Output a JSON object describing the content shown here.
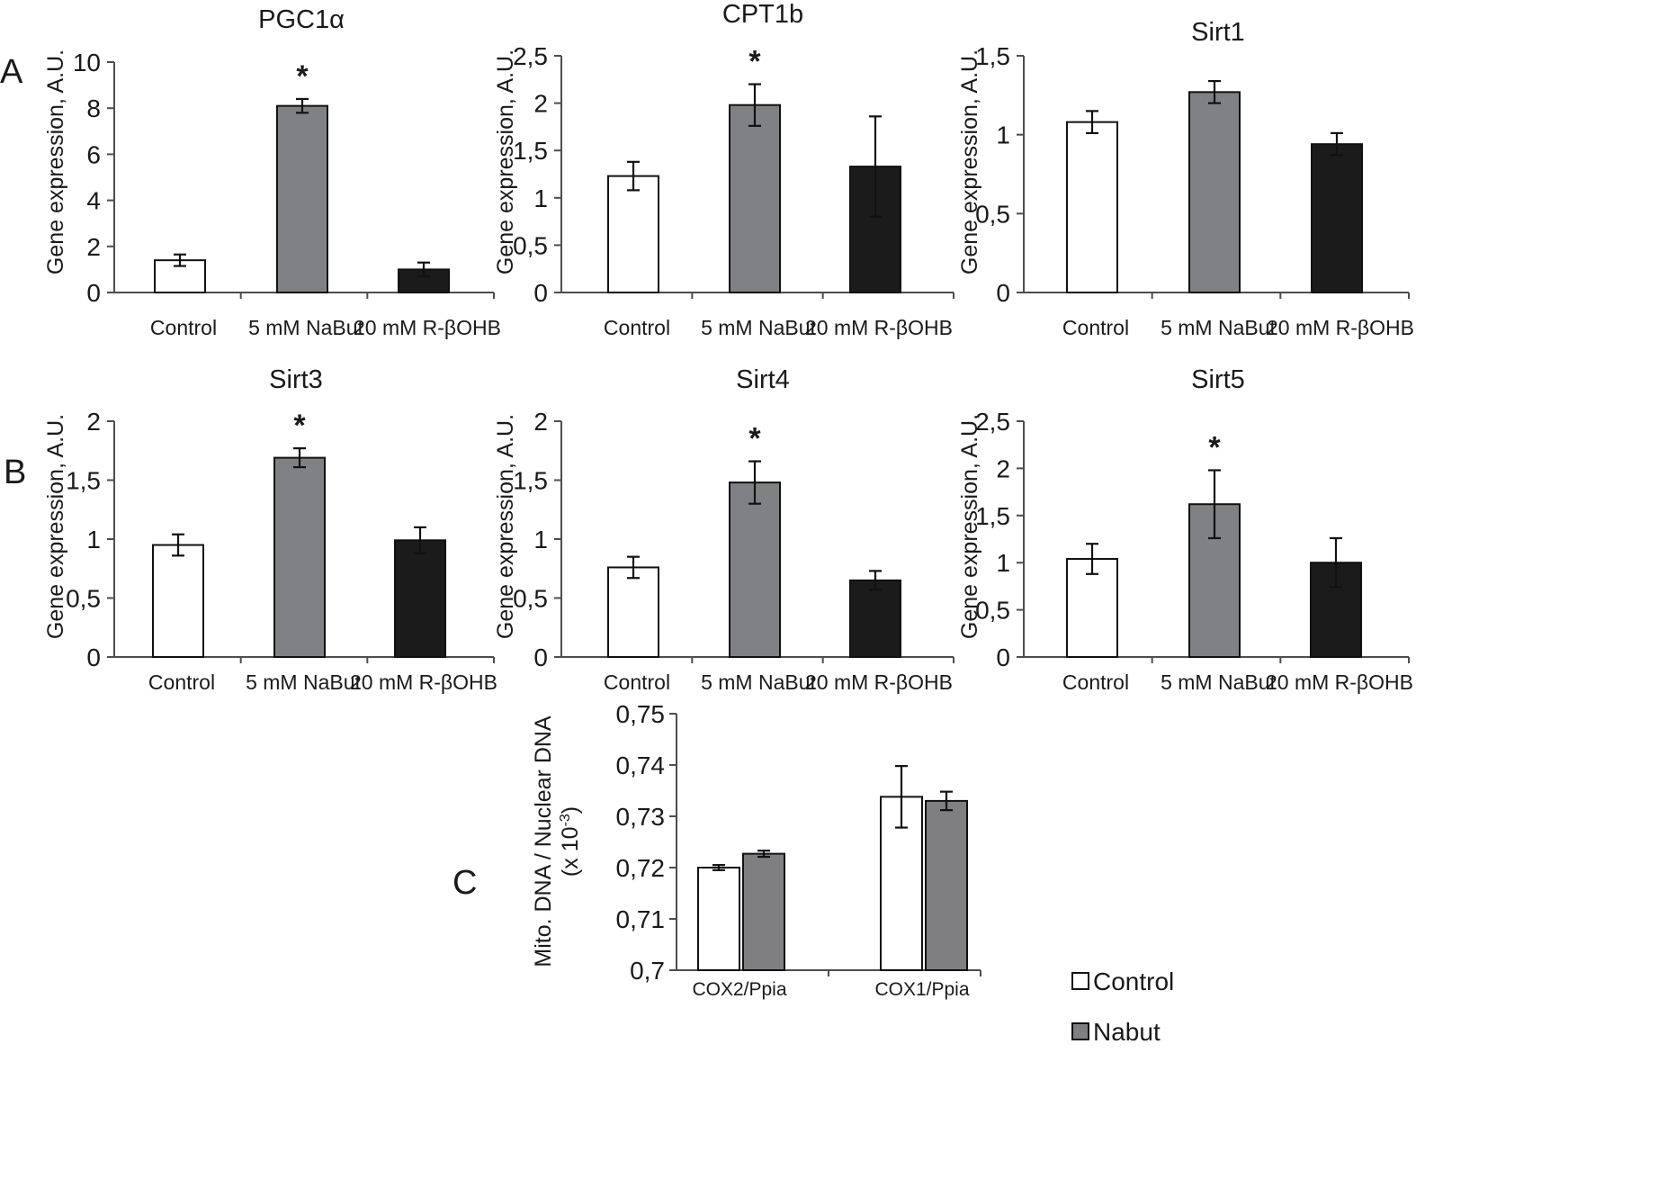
{
  "panel_labels": {
    "a": "A",
    "b": "B",
    "c": "C"
  },
  "colors": {
    "control": "#ffffff",
    "nabut": "#808184",
    "bohb": "#1b1b1b",
    "nabut_c": "#7f7f82"
  },
  "chart_data": [
    {
      "type": "bar",
      "title": "PGC1α",
      "ylabel": "Gene expression, A.U.",
      "categories": [
        "Control",
        "5 mM NaBut",
        "20 mM R-βOHB"
      ],
      "values": [
        1.4,
        8.1,
        1.0
      ],
      "errors": [
        0.25,
        0.3,
        0.3
      ],
      "significant": [
        false,
        true,
        false
      ],
      "sig_marker": "*",
      "ylim": [
        0,
        10
      ],
      "yticks": [
        "0",
        "2",
        "4",
        "6",
        "8",
        "10"
      ]
    },
    {
      "type": "bar",
      "title": "CPT1b",
      "ylabel": "Gene expression, A.U.",
      "categories": [
        "Control",
        "5 mM NaBut",
        "20 mM R-βOHB"
      ],
      "values": [
        1.23,
        1.98,
        1.33
      ],
      "errors": [
        0.15,
        0.22,
        0.53
      ],
      "significant": [
        false,
        true,
        false
      ],
      "sig_marker": "*",
      "ylim": [
        0,
        2.5
      ],
      "yticks": [
        "0",
        "0,5",
        "1",
        "1,5",
        "2",
        "2,5"
      ]
    },
    {
      "type": "bar",
      "title": "Sirt1",
      "ylabel": "Gene expression, A.U.",
      "categories": [
        "Control",
        "5 mM NaBut",
        "20 mM R-βOHB"
      ],
      "values": [
        1.08,
        1.27,
        0.94
      ],
      "errors": [
        0.07,
        0.07,
        0.07
      ],
      "significant": [
        false,
        false,
        false
      ],
      "sig_marker": "*",
      "ylim": [
        0,
        1.5
      ],
      "yticks": [
        "0",
        "0,5",
        "1",
        "1,5"
      ]
    },
    {
      "type": "bar",
      "title": "Sirt3",
      "ylabel": "Gene expression, A.U.",
      "categories": [
        "Control",
        "5 mM NaBut",
        "20 mM R-βOHB"
      ],
      "values": [
        0.95,
        1.69,
        0.99
      ],
      "errors": [
        0.09,
        0.08,
        0.11
      ],
      "significant": [
        false,
        true,
        false
      ],
      "sig_marker": "*",
      "ylim": [
        0,
        2
      ],
      "yticks": [
        "0",
        "0,5",
        "1",
        "1,5",
        "2"
      ]
    },
    {
      "type": "bar",
      "title": "Sirt4",
      "ylabel": "Gene expression, A.U.",
      "categories": [
        "Control",
        "5 mM NaBut",
        "20 mM R-βOHB"
      ],
      "values": [
        0.76,
        1.48,
        0.65
      ],
      "errors": [
        0.09,
        0.18,
        0.08
      ],
      "significant": [
        false,
        true,
        false
      ],
      "sig_marker": "*",
      "ylim": [
        0,
        2
      ],
      "yticks": [
        "0",
        "0,5",
        "1",
        "1,5",
        "2"
      ]
    },
    {
      "type": "bar",
      "title": "Sirt5",
      "ylabel": "Gene expression, A.U.",
      "categories": [
        "Control",
        "5 mM NaBut",
        "20 mM R-βOHB"
      ],
      "values": [
        1.04,
        1.62,
        1.0
      ],
      "errors": [
        0.16,
        0.36,
        0.26
      ],
      "significant": [
        false,
        true,
        false
      ],
      "sig_marker": "*",
      "ylim": [
        0,
        2.5
      ],
      "yticks": [
        "0",
        "0,5",
        "1",
        "1,5",
        "2",
        "2,5"
      ]
    },
    {
      "type": "bar",
      "title": "",
      "ylabel_line1": "Mito. DNA / Nuclear DNA",
      "ylabel_line2": "(x 10",
      "ylabel_sup": "-3",
      "ylabel_close": ")",
      "categories": [
        "COX2/Ppia",
        "COX1/Ppia"
      ],
      "series": [
        {
          "name": "Control",
          "values": [
            0.72,
            0.7338
          ],
          "errors": [
            0.0005,
            0.006
          ]
        },
        {
          "name": "Nabut",
          "values": [
            0.7227,
            0.733
          ],
          "errors": [
            0.0006,
            0.0018
          ]
        }
      ],
      "ylim": [
        0.7,
        0.75
      ],
      "yticks": [
        "0,7",
        "0,71",
        "0,72",
        "0,73",
        "0,74",
        "0,75"
      ],
      "legend": [
        "Control",
        "Nabut"
      ]
    }
  ]
}
